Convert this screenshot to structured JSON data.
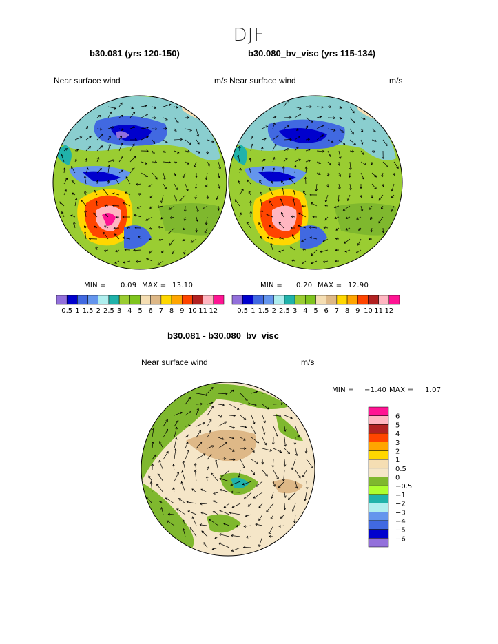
{
  "page_title": "DJF",
  "panels": [
    {
      "case_title": "b30.081 (yrs 120-150)",
      "variable": "Near surface wind",
      "units": "m/s",
      "min_label": "MIN =",
      "min_value": "0.09",
      "max_label": "MAX =",
      "max_value": "13.10"
    },
    {
      "case_title": "b30.080_bv_visc (yrs 115-134)",
      "variable": "Near surface wind",
      "units": "m/s",
      "min_label": "MIN =",
      "min_value": "0.20",
      "max_label": "MAX =",
      "max_value": "12.90"
    },
    {
      "case_title": "b30.081 - b30.080_bv_visc",
      "variable": "Near surface wind",
      "units": "m/s",
      "min_label": "MIN =",
      "min_value": "−1.40",
      "max_label": "MAX =",
      "max_value": "1.07"
    }
  ],
  "chart_data": [
    {
      "type": "heatmap",
      "projection": "north-polar-stereographic",
      "title": "b30.081 (yrs 120-150)",
      "variable": "Near surface wind",
      "units": "m/s",
      "min": 0.09,
      "max": 13.1,
      "vectors": true,
      "colorbar": {
        "orientation": "horizontal",
        "levels": [
          "0.5",
          "1",
          "1.5",
          "2",
          "2.5",
          "3",
          "4",
          "5",
          "6",
          "7",
          "8",
          "9",
          "10",
          "11",
          "12"
        ],
        "colors": [
          "#9370DB",
          "#0000CD",
          "#4169E1",
          "#6495ED",
          "#AFEEEE",
          "#20B2AA",
          "#9ACD32",
          "#7FC41E",
          "#F5DEB3",
          "#DEB887",
          "#FFD700",
          "#FFA500",
          "#FF4500",
          "#B22222",
          "#FFB6C1",
          "#FF1493"
        ]
      }
    },
    {
      "type": "heatmap",
      "projection": "north-polar-stereographic",
      "title": "b30.080_bv_visc (yrs 115-134)",
      "variable": "Near surface wind",
      "units": "m/s",
      "min": 0.2,
      "max": 12.9,
      "vectors": true,
      "colorbar": {
        "orientation": "horizontal",
        "levels": [
          "0.5",
          "1",
          "1.5",
          "2",
          "2.5",
          "3",
          "4",
          "5",
          "6",
          "7",
          "8",
          "9",
          "10",
          "11",
          "12"
        ],
        "colors": [
          "#9370DB",
          "#0000CD",
          "#4169E1",
          "#6495ED",
          "#AFEEEE",
          "#20B2AA",
          "#9ACD32",
          "#7FC41E",
          "#F5DEB3",
          "#DEB887",
          "#FFD700",
          "#FFA500",
          "#FF4500",
          "#B22222",
          "#FFB6C1",
          "#FF1493"
        ]
      }
    },
    {
      "type": "heatmap",
      "projection": "north-polar-stereographic",
      "title": "b30.081 - b30.080_bv_visc",
      "variable": "Near surface wind",
      "units": "m/s",
      "min": -1.4,
      "max": 1.07,
      "vectors": true,
      "colorbar": {
        "orientation": "vertical",
        "levels": [
          "6",
          "5",
          "4",
          "3",
          "2",
          "1",
          "0.5",
          "0",
          "−0.5",
          "−1",
          "−2",
          "−3",
          "−4",
          "−5",
          "−6"
        ],
        "colors": [
          "#FF1493",
          "#FFB6C1",
          "#B22222",
          "#FF4500",
          "#FFA500",
          "#FFD700",
          "#F5DEB3",
          "#F5E6C8",
          "#7FB82E",
          "#ADFF2F",
          "#20B2AA",
          "#AFEEEE",
          "#6495ED",
          "#4169E1",
          "#0000CD",
          "#9370DB"
        ]
      }
    }
  ]
}
